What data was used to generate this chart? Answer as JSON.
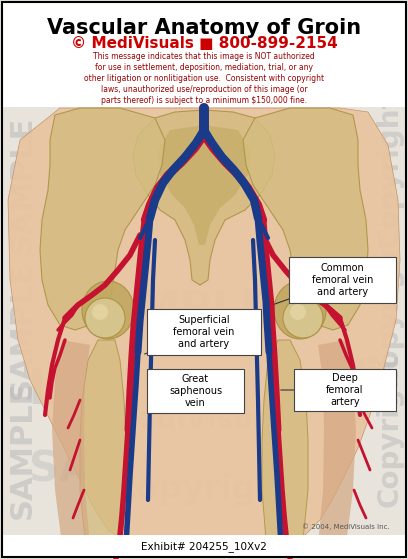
{
  "title": "Vascular Anatomy of Groin",
  "subtitle": "© MediVisuals ■ 800-899-2154",
  "warning_line1": "This message indicates that this image is NOT authorized",
  "warning_line2": "for use in settlement, deposition, mediation, trial, or any",
  "warning_line3": "other litigation or nonlitigation use.  Consistent with copyright",
  "warning_line4": "laws, unauthorized use/reproduction of this image (or",
  "warning_line5": "parts thereof) is subject to a minimum $150,000 fine.",
  "exhibit_text": "Exhibit# 204255_10Xv2",
  "copyright_text": "© 2004, MediVisuals Inc.",
  "labels": {
    "common_femoral": "Common\nfemoral vein\nand artery",
    "superficial_femoral": "Superficial\nfemoral vein\nand artery",
    "great_saphenous": "Great\nsaphenous\nvein",
    "deep_femoral": "Deep\nfemoral\nartery"
  },
  "artery_color": "#c41230",
  "vein_color": "#1a3a8a",
  "skin_light": "#e8c4a0",
  "skin_mid": "#d4a882",
  "skin_dark": "#c09060",
  "bone_light": "#d4bc80",
  "bone_mid": "#c0a860",
  "bone_dark": "#a89040",
  "bg_color": "#e8e4dc",
  "title_color": "#000000",
  "subtitle_color": "#cc0000",
  "warning_color": "#990000",
  "border_color": "#000000",
  "label_bg": "#ffffff",
  "wm_color": "#b8b8b8"
}
